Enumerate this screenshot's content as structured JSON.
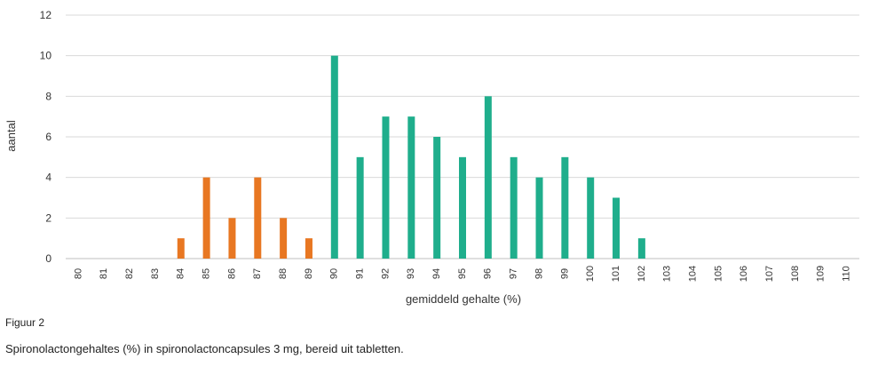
{
  "figure": {
    "label": "Figuur 2",
    "caption": "Spironolactongehaltes (%) in spironolactoncapsules 3 mg, bereid uit tabletten."
  },
  "colors": {
    "low": "#E87722",
    "high": "#1FAE8C",
    "grid": "#d9d9d9"
  },
  "chart_data": {
    "type": "bar",
    "xlabel": "gemiddeld gehalte (%)",
    "ylabel": "aantal",
    "ylim": [
      0,
      12
    ],
    "yticks": [
      0,
      2,
      4,
      6,
      8,
      10,
      12
    ],
    "grid": true,
    "categories": [
      "80",
      "81",
      "82",
      "83",
      "84",
      "85",
      "86",
      "87",
      "88",
      "89",
      "90",
      "91",
      "92",
      "93",
      "94",
      "95",
      "96",
      "97",
      "98",
      "99",
      "100",
      "101",
      "102",
      "103",
      "104",
      "105",
      "106",
      "107",
      "108",
      "109",
      "110"
    ],
    "values": [
      0,
      0,
      0,
      0,
      1,
      4,
      2,
      4,
      2,
      1,
      10,
      5,
      7,
      7,
      6,
      5,
      8,
      5,
      4,
      5,
      4,
      3,
      1,
      0,
      0,
      0,
      0,
      0,
      0,
      0,
      0
    ],
    "bar_colors": [
      "low",
      "low",
      "low",
      "low",
      "low",
      "low",
      "low",
      "low",
      "low",
      "low",
      "high",
      "high",
      "high",
      "high",
      "high",
      "high",
      "high",
      "high",
      "high",
      "high",
      "high",
      "high",
      "high",
      "high",
      "high",
      "high",
      "high",
      "high",
      "high",
      "high",
      "high"
    ]
  }
}
